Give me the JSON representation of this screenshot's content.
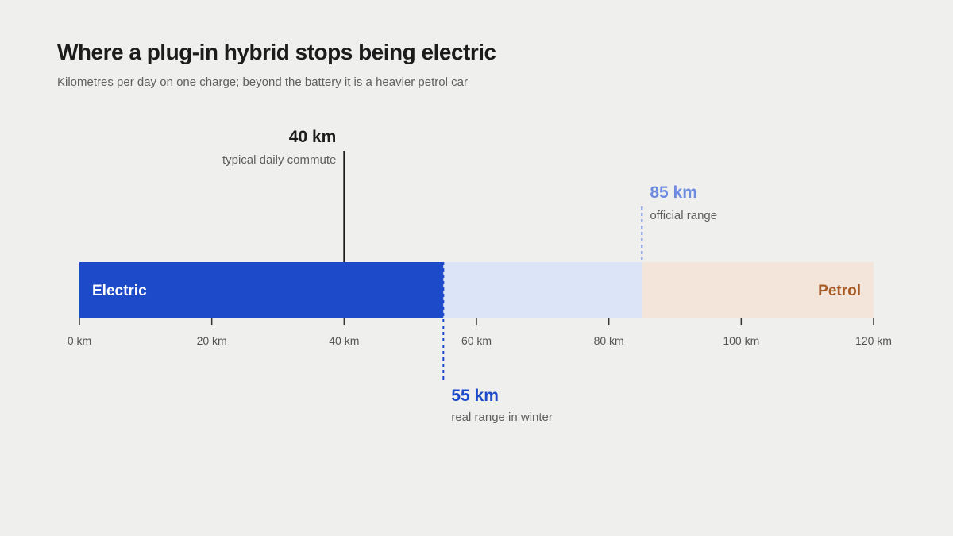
{
  "title": "Where a plug-in hybrid stops being electric",
  "subtitle": "Kilometres per day on one charge; beyond the battery it is a heavier petrol car",
  "chart_data": {
    "type": "bar",
    "orientation": "horizontal",
    "xlim": [
      0,
      120
    ],
    "unit": "km",
    "ticks": [
      0,
      20,
      40,
      60,
      80,
      100,
      120
    ],
    "tick_labels": [
      "0 km",
      "20 km",
      "40 km",
      "60 km",
      "80 km",
      "100 km",
      "120 km"
    ],
    "segments": [
      {
        "name": "Electric",
        "start": 0,
        "end": 55,
        "color": "#1c4ac8",
        "labeled": true
      },
      {
        "name": "",
        "start": 55,
        "end": 85,
        "color": "#dce4f7",
        "labeled": false
      },
      {
        "name": "Petrol",
        "start": 85,
        "end": 120,
        "color": "#f3e5d9",
        "labeled": true
      }
    ],
    "segment_label_colors": {
      "Electric": "#ffffff",
      "Petrol": "#a85a24"
    },
    "markers": [
      {
        "value": 40,
        "label": "40 km",
        "note": "typical daily commute",
        "color": "#1c1c1c",
        "line_style": "solid",
        "position": "above"
      },
      {
        "value": 85,
        "label": "85 km",
        "note": "official range",
        "color": "#6f8be0",
        "line_style": "dashed",
        "position": "above"
      },
      {
        "value": 55,
        "label": "55 km",
        "note": "real range in winter",
        "color": "#1c4ac8",
        "line_style": "dashed",
        "position": "below"
      }
    ]
  }
}
